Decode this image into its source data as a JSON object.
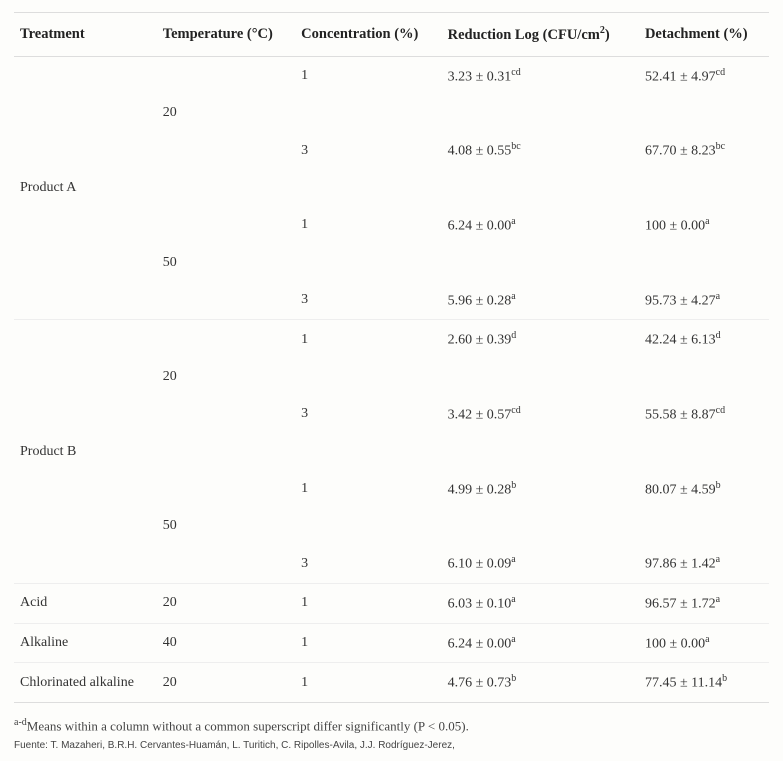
{
  "header": {
    "treatment": "Treatment",
    "temperature": "Temperature (°C)",
    "concentration": "Concentration (%)",
    "reduction": "Reduction Log (CFU/cm",
    "reduction_sup": "2",
    "reduction_close": ")",
    "detachment": "Detachment (%)"
  },
  "rows": [
    {
      "treatment": "",
      "temp": "",
      "conc": "1",
      "red_val": "3.23 ± 0.31",
      "red_sup": "cd",
      "det_val": "52.41 ± 4.97",
      "det_sup": "cd",
      "border": false
    },
    {
      "treatment": "",
      "temp": "20",
      "conc": "",
      "red_val": "",
      "red_sup": "",
      "det_val": "",
      "det_sup": "",
      "border": false
    },
    {
      "treatment": "",
      "temp": "",
      "conc": "3",
      "red_val": "4.08 ± 0.55",
      "red_sup": "bc",
      "det_val": "67.70 ± 8.23",
      "det_sup": "bc",
      "border": false
    },
    {
      "treatment": "Product A",
      "temp": "",
      "conc": "",
      "red_val": "",
      "red_sup": "",
      "det_val": "",
      "det_sup": "",
      "border": false
    },
    {
      "treatment": "",
      "temp": "",
      "conc": "1",
      "red_val": "6.24 ± 0.00",
      "red_sup": "a",
      "det_val": "100 ± 0.00",
      "det_sup": "a",
      "border": false
    },
    {
      "treatment": "",
      "temp": "50",
      "conc": "",
      "red_val": "",
      "red_sup": "",
      "det_val": "",
      "det_sup": "",
      "border": false
    },
    {
      "treatment": "",
      "temp": "",
      "conc": "3",
      "red_val": "5.96 ± 0.28",
      "red_sup": "a",
      "det_val": "95.73 ± 4.27",
      "det_sup": "a",
      "border": true
    },
    {
      "treatment": "",
      "temp": "",
      "conc": "1",
      "red_val": "2.60 ± 0.39",
      "red_sup": "d",
      "det_val": "42.24 ± 6.13",
      "det_sup": "d",
      "border": false
    },
    {
      "treatment": "",
      "temp": "20",
      "conc": "",
      "red_val": "",
      "red_sup": "",
      "det_val": "",
      "det_sup": "",
      "border": false
    },
    {
      "treatment": "",
      "temp": "",
      "conc": "3",
      "red_val": "3.42 ± 0.57",
      "red_sup": "cd",
      "det_val": "55.58 ± 8.87",
      "det_sup": "cd",
      "border": false
    },
    {
      "treatment": "Product B",
      "temp": "",
      "conc": "",
      "red_val": "",
      "red_sup": "",
      "det_val": "",
      "det_sup": "",
      "border": false
    },
    {
      "treatment": "",
      "temp": "",
      "conc": "1",
      "red_val": "4.99 ± 0.28",
      "red_sup": "b",
      "det_val": "80.07 ± 4.59",
      "det_sup": "b",
      "border": false
    },
    {
      "treatment": "",
      "temp": "50",
      "conc": "",
      "red_val": "",
      "red_sup": "",
      "det_val": "",
      "det_sup": "",
      "border": false
    },
    {
      "treatment": "",
      "temp": "",
      "conc": "3",
      "red_val": "6.10 ± 0.09",
      "red_sup": "a",
      "det_val": "97.86 ± 1.42",
      "det_sup": "a",
      "border": true
    },
    {
      "treatment": "Acid",
      "temp": "20",
      "conc": "1",
      "red_val": "6.03 ± 0.10",
      "red_sup": "a",
      "det_val": "96.57 ± 1.72",
      "det_sup": "a",
      "border": true
    },
    {
      "treatment": "Alkaline",
      "temp": "40",
      "conc": "1",
      "red_val": "6.24 ± 0.00",
      "red_sup": "a",
      "det_val": "100 ± 0.00",
      "det_sup": "a",
      "border": true
    },
    {
      "treatment": "Chlorinated alkaline",
      "temp": "20",
      "conc": "1",
      "red_val": "4.76 ± 0.73",
      "red_sup": "b",
      "det_val": "77.45 ± 11.14",
      "det_sup": "b",
      "border": true
    }
  ],
  "footnote": {
    "sup": "a-d",
    "text": "Means within a column without a common superscript differ significantly (P < 0.05)."
  },
  "source": "Fuente: T. Mazaheri, B.R.H. Cervantes-Huamán, L. Turitich, C. Ripolles-Avila, J.J. Rodríguez-Jerez,",
  "style": {
    "font_family": "Georgia, serif",
    "text_color": "#333333",
    "border_color": "#dddddd",
    "row_border_color": "#eeeeee",
    "background": "#fdfdfb",
    "header_fontsize": 14.5,
    "cell_fontsize": 14,
    "footnote_fontsize": 13,
    "source_fontsize": 10
  }
}
